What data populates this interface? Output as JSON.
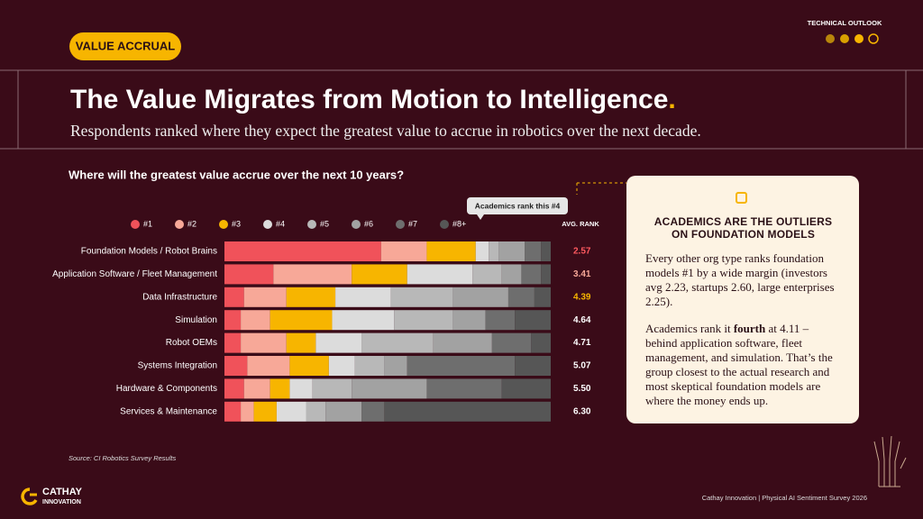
{
  "badge": "VALUE ACCRUAL",
  "section": "TECHNICAL OUTLOOK",
  "header": {
    "title": "The Value Migrates from Motion to Intelligence",
    "title_period": ".",
    "subtitle": "Respondents ranked where they expect the greatest value to accrue in robotics over the next decade."
  },
  "chart_data": {
    "type": "bar",
    "orientation": "horizontal",
    "stacked": true,
    "title": "Where will the greatest value accrue over the next 10 years?",
    "xlim": [
      0,
      100
    ],
    "categories": [
      "Foundation Models / Robot Brains",
      "Application Software / Fleet Management",
      "Data Infrastructure",
      "Simulation",
      "Robot OEMs",
      "Systems Integration",
      "Hardware & Components",
      "Services & Maintenance"
    ],
    "series": [
      {
        "name": "#1",
        "color": "#f0525a",
        "values": [
          48,
          15,
          6,
          5,
          5,
          7,
          6,
          5
        ]
      },
      {
        "name": "#2",
        "color": "#f7a898",
        "values": [
          14,
          24,
          13,
          9,
          14,
          13,
          8,
          4
        ]
      },
      {
        "name": "#3",
        "color": "#f7b500",
        "values": [
          15,
          17,
          15,
          19,
          9,
          12,
          6,
          7
        ]
      },
      {
        "name": "#4",
        "color": "#dcdcdc",
        "values": [
          4,
          20,
          17,
          19,
          14,
          8,
          7,
          9
        ]
      },
      {
        "name": "#5",
        "color": "#b8b8b8",
        "values": [
          3,
          9,
          19,
          18,
          22,
          9,
          12,
          6
        ]
      },
      {
        "name": "#6",
        "color": "#a2a2a2",
        "values": [
          8,
          6,
          17,
          10,
          18,
          7,
          23,
          11
        ]
      },
      {
        "name": "#7",
        "color": "#6e6e6e",
        "values": [
          5,
          6,
          8,
          9,
          12,
          33,
          23,
          7
        ]
      },
      {
        "name": "#8+",
        "color": "#565656",
        "values": [
          3,
          3,
          5,
          11,
          6,
          11,
          15,
          51
        ]
      }
    ],
    "avg_rank_label": "AVG. RANK",
    "avg_rank": [
      2.57,
      3.41,
      4.39,
      4.64,
      4.71,
      5.07,
      5.5,
      6.3
    ],
    "avg_rank_labels": [
      "2.57",
      "3.41",
      "4.39",
      "4.64",
      "4.71",
      "5.07",
      "5.50",
      "6.30"
    ],
    "annotation": "Academics rank this #4",
    "source": "Source: CI Robotics Survey Results"
  },
  "callout": {
    "heading": "ACADEMICS ARE THE OUTLIERS ON FOUNDATION MODELS",
    "paragraph1": "Every other org type ranks foundation models #1 by a wide margin (investors avg 2.23, startups 2.60, large enterprises 2.25).",
    "paragraph2": [
      "Academics rank it ",
      "fourth",
      " at 4.11 – behind application software, fleet management, and simulation. That’s the group closest to the actual research and most skeptical foundation models are where the money ends up."
    ]
  },
  "logo": {
    "line1": "CATHAY",
    "line2": "INNOVATION"
  },
  "footer": "Cathay Innovation | Physical AI Sentiment Survey 2026"
}
